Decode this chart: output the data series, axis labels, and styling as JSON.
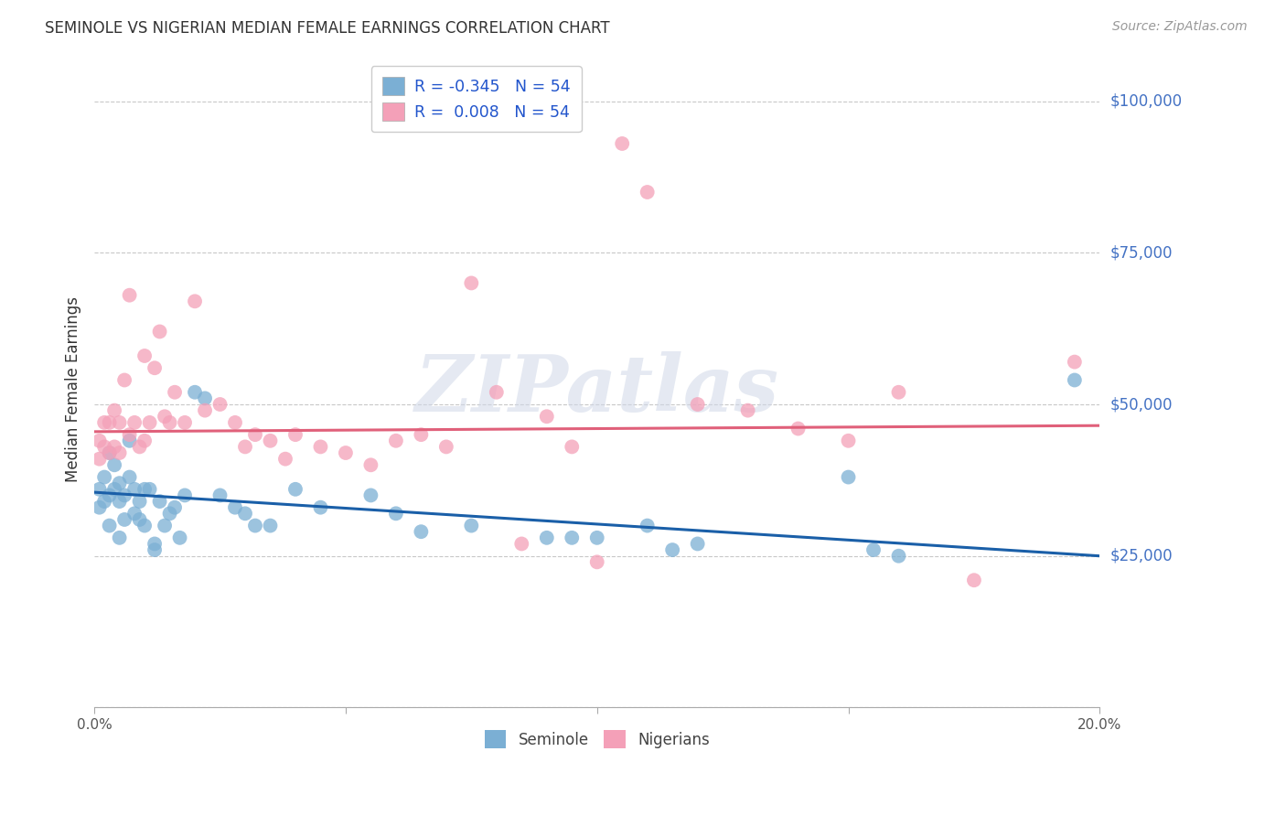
{
  "title": "SEMINOLE VS NIGERIAN MEDIAN FEMALE EARNINGS CORRELATION CHART",
  "source": "Source: ZipAtlas.com",
  "ylabel": "Median Female Earnings",
  "xlim": [
    0.0,
    0.2
  ],
  "ylim": [
    0,
    105000
  ],
  "yticks": [
    0,
    25000,
    50000,
    75000,
    100000
  ],
  "ytick_labels": [
    "",
    "$25,000",
    "$50,000",
    "$75,000",
    "$100,000"
  ],
  "xticks": [
    0.0,
    0.05,
    0.1,
    0.15,
    0.2
  ],
  "xtick_labels": [
    "0.0%",
    "",
    "",
    "",
    "20.0%"
  ],
  "seminole_color": "#7bafd4",
  "nigerian_color": "#f4a0b8",
  "seminole_trend_color": "#1a5fa8",
  "nigerian_trend_color": "#e0607a",
  "watermark": "ZIPatlas",
  "background_color": "#ffffff",
  "grid_color": "#c8c8c8",
  "seminole_legend": "R = -0.345   N = 54",
  "nigerian_legend": "R =  0.008   N = 54",
  "seminole_label": "Seminole",
  "nigerian_label": "Nigerians",
  "seminole_x": [
    0.001,
    0.001,
    0.002,
    0.002,
    0.003,
    0.003,
    0.003,
    0.004,
    0.004,
    0.005,
    0.005,
    0.005,
    0.006,
    0.006,
    0.007,
    0.007,
    0.008,
    0.008,
    0.009,
    0.009,
    0.01,
    0.01,
    0.011,
    0.012,
    0.012,
    0.013,
    0.014,
    0.015,
    0.016,
    0.017,
    0.018,
    0.02,
    0.022,
    0.025,
    0.028,
    0.03,
    0.032,
    0.035,
    0.04,
    0.045,
    0.055,
    0.06,
    0.065,
    0.075,
    0.09,
    0.095,
    0.1,
    0.11,
    0.115,
    0.12,
    0.15,
    0.155,
    0.16,
    0.195
  ],
  "seminole_y": [
    36000,
    33000,
    38000,
    34000,
    42000,
    35000,
    30000,
    40000,
    36000,
    37000,
    34000,
    28000,
    35000,
    31000,
    44000,
    38000,
    36000,
    32000,
    34000,
    31000,
    36000,
    30000,
    36000,
    27000,
    26000,
    34000,
    30000,
    32000,
    33000,
    28000,
    35000,
    52000,
    51000,
    35000,
    33000,
    32000,
    30000,
    30000,
    36000,
    33000,
    35000,
    32000,
    29000,
    30000,
    28000,
    28000,
    28000,
    30000,
    26000,
    27000,
    38000,
    26000,
    25000,
    54000
  ],
  "nigerian_x": [
    0.001,
    0.001,
    0.002,
    0.002,
    0.003,
    0.003,
    0.004,
    0.004,
    0.005,
    0.005,
    0.006,
    0.007,
    0.007,
    0.008,
    0.009,
    0.01,
    0.01,
    0.011,
    0.012,
    0.013,
    0.014,
    0.015,
    0.016,
    0.018,
    0.02,
    0.022,
    0.025,
    0.028,
    0.03,
    0.032,
    0.035,
    0.038,
    0.04,
    0.045,
    0.05,
    0.055,
    0.06,
    0.065,
    0.07,
    0.075,
    0.08,
    0.085,
    0.09,
    0.095,
    0.1,
    0.105,
    0.11,
    0.12,
    0.13,
    0.14,
    0.15,
    0.16,
    0.175,
    0.195
  ],
  "nigerian_y": [
    44000,
    41000,
    47000,
    43000,
    47000,
    42000,
    49000,
    43000,
    47000,
    42000,
    54000,
    68000,
    45000,
    47000,
    43000,
    58000,
    44000,
    47000,
    56000,
    62000,
    48000,
    47000,
    52000,
    47000,
    67000,
    49000,
    50000,
    47000,
    43000,
    45000,
    44000,
    41000,
    45000,
    43000,
    42000,
    40000,
    44000,
    45000,
    43000,
    70000,
    52000,
    27000,
    48000,
    43000,
    24000,
    93000,
    85000,
    50000,
    49000,
    46000,
    44000,
    52000,
    21000,
    57000
  ]
}
